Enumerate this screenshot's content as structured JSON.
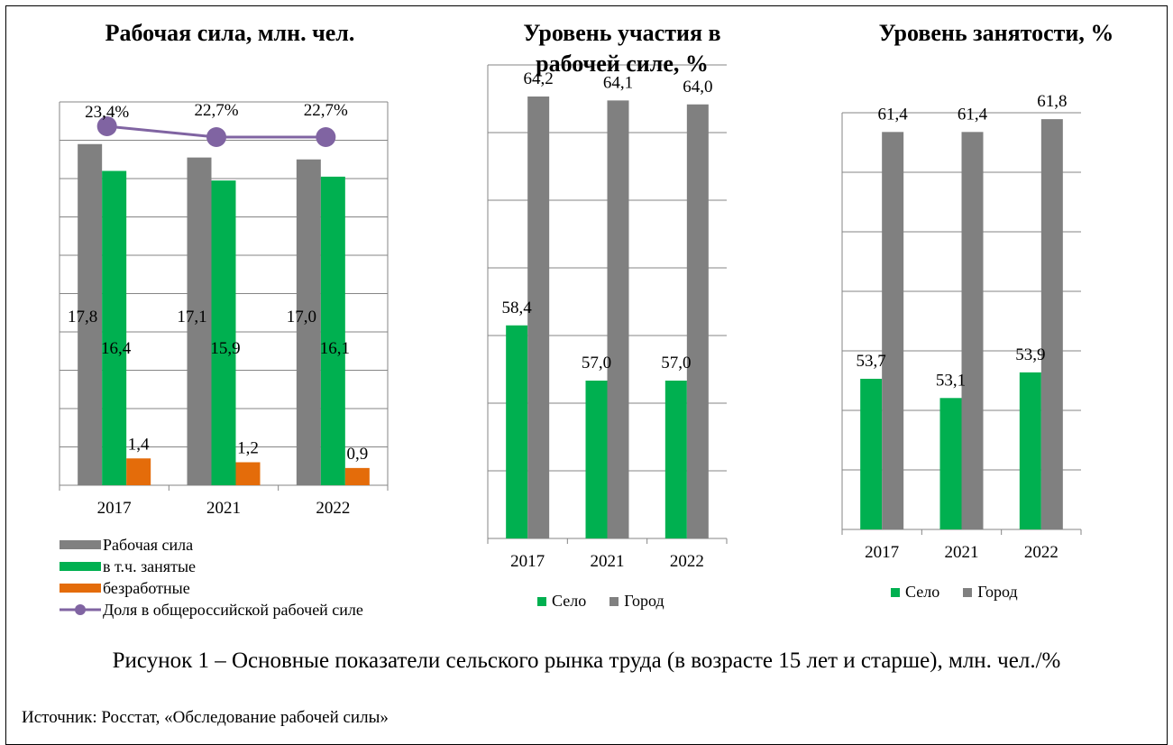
{
  "colors": {
    "gray": "#808080",
    "green": "#00b050",
    "orange": "#e46c0a",
    "purple": "#8064a2",
    "grid": "#868686"
  },
  "chart_data": [
    {
      "type": "bar",
      "title": "Рабочая сила, млн. чел.",
      "categories": [
        "2017",
        "2021",
        "2022"
      ],
      "series": [
        {
          "name": "Рабочая сила",
          "color": "gray",
          "values": [
            17.8,
            17.1,
            17.0
          ],
          "labels": [
            "17,8",
            "17,1",
            "17,0"
          ]
        },
        {
          "name": "в т.ч. занятые",
          "color": "green",
          "values": [
            16.4,
            15.9,
            16.1
          ],
          "labels": [
            "16,4",
            "15,9",
            "16,1"
          ]
        },
        {
          "name": "безработные",
          "color": "orange",
          "values": [
            1.4,
            1.2,
            0.9
          ],
          "labels": [
            "1,4",
            "1,2",
            "0,9"
          ]
        }
      ],
      "line_series": {
        "name": "Доля в общероссийской рабочей силе",
        "color": "purple",
        "values": [
          23.4,
          22.7,
          22.7
        ],
        "labels": [
          "23,4%",
          "22,7%",
          "22,7%"
        ]
      },
      "ylim": [
        0,
        20
      ],
      "grid": true,
      "legend": "bottom"
    },
    {
      "type": "bar",
      "title": "Уровень участия в рабочей силе, %",
      "categories": [
        "2017",
        "2021",
        "2022"
      ],
      "series": [
        {
          "name": "Село",
          "color": "green",
          "values": [
            58.4,
            57.0,
            57.0
          ],
          "labels": [
            "58,4",
            "57,0",
            "57,0"
          ]
        },
        {
          "name": "Город",
          "color": "gray",
          "values": [
            64.2,
            64.1,
            64.0
          ],
          "labels": [
            "64,2",
            "64,1",
            "64,0"
          ]
        }
      ],
      "ylim": [
        53,
        65
      ],
      "grid": true,
      "legend": "bottom"
    },
    {
      "type": "bar",
      "title": "Уровень занятости, %",
      "categories": [
        "2017",
        "2021",
        "2022"
      ],
      "series": [
        {
          "name": "Село",
          "color": "green",
          "values": [
            53.7,
            53.1,
            53.9
          ],
          "labels": [
            "53,7",
            "53,1",
            "53,9"
          ]
        },
        {
          "name": "Город",
          "color": "gray",
          "values": [
            61.4,
            61.4,
            61.8
          ],
          "labels": [
            "61,4",
            "61,4",
            "61,8"
          ]
        }
      ],
      "ylim": [
        49,
        62
      ],
      "grid": true,
      "legend": "bottom"
    }
  ],
  "caption": "Рисунок 1 – Основные показатели сельского рынка труда (в возрасте 15 лет и старше), млн. чел./%",
  "source": "Источник: Росстат, «Обследование рабочей силы»"
}
